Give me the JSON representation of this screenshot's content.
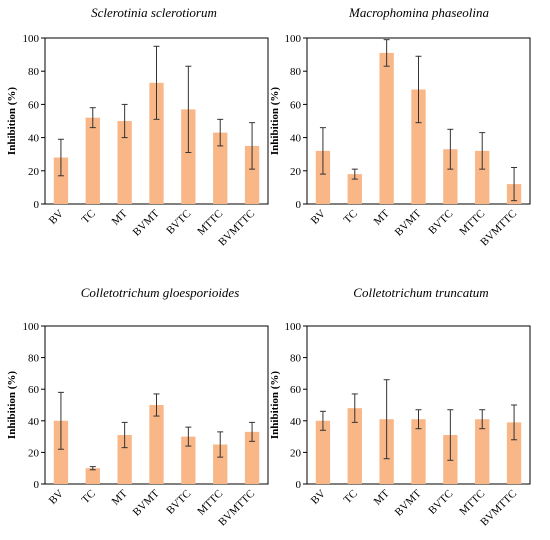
{
  "colors": {
    "bar": "#f9b788",
    "axis": "#000000",
    "errorbar": "#333333"
  },
  "chart_data": [
    {
      "type": "bar",
      "title": "Sclerotinia sclerotiorum",
      "ylabel": "Inhibition (%)",
      "ylim": [
        0,
        100
      ],
      "yticks": [
        "0",
        "20",
        "40",
        "60",
        "80",
        "100"
      ],
      "categories": [
        "BV",
        "TC",
        "MT",
        "BVMT",
        "BVTC",
        "MTTC",
        "BVMTTC"
      ],
      "values": [
        28,
        52,
        50,
        73,
        57,
        43,
        35
      ],
      "errors": [
        11,
        6,
        10,
        22,
        26,
        8,
        14
      ]
    },
    {
      "type": "bar",
      "title": "Macrophomina phaseolina",
      "ylabel": "Inhibition (%)",
      "ylim": [
        0,
        100
      ],
      "yticks": [
        "0",
        "20",
        "40",
        "60",
        "80",
        "100"
      ],
      "categories": [
        "BV",
        "TC",
        "MT",
        "BVMT",
        "BVTC",
        "MTTC",
        "BVMTTC"
      ],
      "values": [
        32,
        18,
        91,
        69,
        33,
        32,
        12
      ],
      "errors": [
        14,
        3,
        8,
        20,
        12,
        11,
        10
      ]
    },
    {
      "type": "bar",
      "title": "Colletotrichum gloesporioides",
      "ylabel": "Inhibition (%)",
      "ylim": [
        0,
        100
      ],
      "yticks": [
        "0",
        "20",
        "40",
        "60",
        "80",
        "100"
      ],
      "categories": [
        "BV",
        "TC",
        "MT",
        "BVMT",
        "BVTC",
        "MTTC",
        "BVMTTC"
      ],
      "values": [
        40,
        10,
        31,
        50,
        30,
        25,
        33
      ],
      "errors": [
        18,
        1,
        8,
        7,
        6,
        8,
        6
      ]
    },
    {
      "type": "bar",
      "title": "Colletotrichum truncatum",
      "ylabel": "Inhibition (%)",
      "ylim": [
        0,
        100
      ],
      "yticks": [
        "0",
        "20",
        "40",
        "60",
        "80",
        "100"
      ],
      "categories": [
        "BV",
        "TC",
        "MT",
        "BVMT",
        "BVTC",
        "MTTC",
        "BVMTTC"
      ],
      "values": [
        40,
        48,
        41,
        41,
        31,
        41,
        39
      ],
      "errors": [
        6,
        9,
        25,
        6,
        16,
        6,
        11
      ]
    }
  ]
}
